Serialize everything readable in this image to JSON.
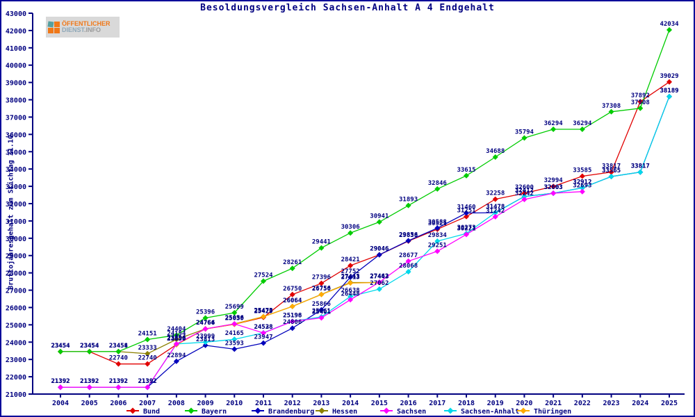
{
  "window": {
    "title": "Besoldungsvergleich Sachsen-Anhalt A 4 Endgehalt"
  },
  "logo": {
    "line1": "ÖFFENTLICHER",
    "line2": "DIENST",
    "line2_suffix": ".INFO"
  },
  "chart_data": {
    "type": "line",
    "title": "Besoldungsvergleich Sachsen-Anhalt A 4 Endgehalt",
    "xlabel": "",
    "ylabel": "Bruttojahresgehalt zum Stichtag 31.10.",
    "ylim": [
      21000,
      43000
    ],
    "ytick_step": 1000,
    "grid": false,
    "legend_position": "bottom",
    "axis_color": "#000080",
    "label_color": "#000080",
    "x": [
      2004,
      2005,
      2006,
      2007,
      2008,
      2009,
      2010,
      2011,
      2012,
      2013,
      2014,
      2015,
      2016,
      2017,
      2018,
      2019,
      2020,
      2021,
      2022,
      2023,
      2024,
      2025
    ],
    "series": [
      {
        "name": "Bund",
        "color": "#e10000",
        "values": [
          23454,
          23454,
          22740,
          22740,
          23858,
          24764,
          25030,
          25429,
          26750,
          27396,
          28421,
          29046,
          29838,
          30521,
          31251,
          32258,
          32600,
          32994,
          33585,
          33817,
          37892,
          39029
        ]
      },
      {
        "name": "Bayern",
        "color": "#00cc00",
        "values": [
          23454,
          23454,
          23458,
          24151,
          24404,
          25396,
          25699,
          27524,
          28261,
          29441,
          30306,
          30941,
          31893,
          32846,
          33615,
          34688,
          35794,
          36294,
          36294,
          37308,
          37508,
          42034
        ]
      },
      {
        "name": "Brandenburg",
        "color": "#0000bb",
        "values": [
          21392,
          21392,
          21392,
          21392,
          22894,
          23813,
          23593,
          23947,
          24806,
          25866,
          27752,
          29046,
          29856,
          30588,
          31460,
          31478,
          32412,
          32603,
          32912,
          33565,
          33817,
          38189
        ]
      },
      {
        "name": "Hessen",
        "color": "#8b8000",
        "values": [
          23454,
          23454,
          23454,
          23333,
          24154,
          24766,
          25056,
          25473,
          26064,
          26756,
          27443,
          27443,
          null,
          null,
          null,
          null,
          null,
          null,
          null,
          null,
          null,
          null
        ]
      },
      {
        "name": "Sachsen",
        "color": "#ff00ff",
        "values": [
          21392,
          21392,
          21392,
          21392,
          23896,
          24766,
          25056,
          24528,
          25196,
          25401,
          26448,
          27462,
          28677,
          29251,
          30221,
          31242,
          32242,
          32603,
          32693,
          null,
          null,
          null
        ]
      },
      {
        "name": "Sachsen-Anhalt",
        "color": "#00d8ea",
        "values": [
          21392,
          21392,
          21392,
          21392,
          23896,
          23999,
          24165,
          24538,
          25198,
          25461,
          26638,
          27062,
          28068,
          29834,
          30273,
          31478,
          32412,
          32603,
          32912,
          33565,
          33817,
          38189
        ]
      },
      {
        "name": "Thüringen",
        "color": "#ffaa00",
        "values": [
          null,
          null,
          null,
          null,
          23850,
          24764,
          25030,
          25473,
          26064,
          26750,
          27413,
          27443,
          null,
          null,
          null,
          null,
          null,
          null,
          null,
          null,
          null,
          null
        ]
      }
    ],
    "draw_order": [
      "Bund",
      "Hessen",
      "Thüringen",
      "Brandenburg",
      "Sachsen-Anhalt",
      "Sachsen",
      "Bayern"
    ]
  }
}
